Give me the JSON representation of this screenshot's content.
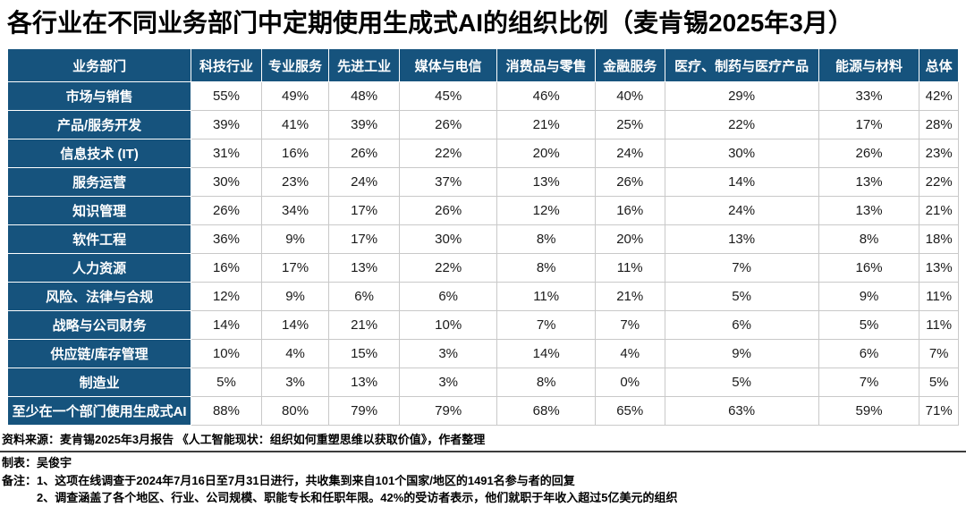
{
  "title": "各行业在不同业务部门中定期使用生成式AI的组织比例（麦肯锡2025年3月）",
  "colors": {
    "header_blue": "#16537D",
    "grid_gray": "#c9c9c9"
  },
  "chart_data": {
    "type": "table",
    "title": "各行业在不同业务部门中定期使用生成式AI的组织比例（麦肯锡2025年3月）",
    "columns": [
      "业务部门",
      "科技行业",
      "专业服务",
      "先进工业",
      "媒体与电信",
      "消费品与零售",
      "金融服务",
      "医疗、制药与医疗产品",
      "能源与材料",
      "总体"
    ],
    "col_widths_pct": [
      19.3,
      7.4,
      7.1,
      7.4,
      10.3,
      10.3,
      7.3,
      16.2,
      10.6,
      4.1
    ],
    "rows": [
      {
        "label": "市场与销售",
        "values": [
          "55%",
          "49%",
          "48%",
          "45%",
          "46%",
          "40%",
          "29%",
          "33%",
          "42%"
        ]
      },
      {
        "label": "产品/服务开发",
        "values": [
          "39%",
          "41%",
          "39%",
          "26%",
          "21%",
          "25%",
          "22%",
          "17%",
          "28%"
        ]
      },
      {
        "label": "信息技术 (IT)",
        "values": [
          "31%",
          "16%",
          "26%",
          "22%",
          "20%",
          "24%",
          "30%",
          "26%",
          "23%"
        ]
      },
      {
        "label": "服务运营",
        "values": [
          "30%",
          "23%",
          "24%",
          "37%",
          "13%",
          "26%",
          "14%",
          "13%",
          "22%"
        ]
      },
      {
        "label": "知识管理",
        "values": [
          "26%",
          "34%",
          "17%",
          "26%",
          "12%",
          "16%",
          "24%",
          "13%",
          "21%"
        ]
      },
      {
        "label": "软件工程",
        "values": [
          "36%",
          "9%",
          "17%",
          "30%",
          "8%",
          "20%",
          "13%",
          "8%",
          "18%"
        ]
      },
      {
        "label": "人力资源",
        "values": [
          "16%",
          "17%",
          "13%",
          "22%",
          "8%",
          "11%",
          "7%",
          "16%",
          "13%"
        ]
      },
      {
        "label": "风险、法律与合规",
        "values": [
          "12%",
          "9%",
          "6%",
          "6%",
          "11%",
          "21%",
          "5%",
          "9%",
          "11%"
        ]
      },
      {
        "label": "战略与公司财务",
        "values": [
          "14%",
          "14%",
          "21%",
          "10%",
          "7%",
          "7%",
          "6%",
          "5%",
          "11%"
        ]
      },
      {
        "label": "供应链/库存管理",
        "values": [
          "10%",
          "4%",
          "15%",
          "3%",
          "14%",
          "4%",
          "9%",
          "6%",
          "7%"
        ]
      },
      {
        "label": "制造业",
        "values": [
          "5%",
          "3%",
          "13%",
          "3%",
          "8%",
          "0%",
          "5%",
          "7%",
          "5%"
        ]
      },
      {
        "label": "至少在一个部门使用生成式AI",
        "values": [
          "88%",
          "80%",
          "79%",
          "79%",
          "68%",
          "65%",
          "63%",
          "59%",
          "71%"
        ]
      }
    ]
  },
  "footer": {
    "source": "资料来源：麦肯锡2025年3月报告 《人工智能现状：组织如何重塑思维以获取价值》，作者整理",
    "credit": "制表：吴俊宇",
    "notes_label": "备注：",
    "notes": [
      "1、这项在线调查于2024年7月16日至7月31日进行，共收集到来自101个国家/地区的1491名参与者的回复",
      "2、调查涵盖了各个地区、行业、公司规模、职能专长和任职年限。42%的受访者表示，他们就职于年收入超过5亿美元的组织"
    ]
  }
}
